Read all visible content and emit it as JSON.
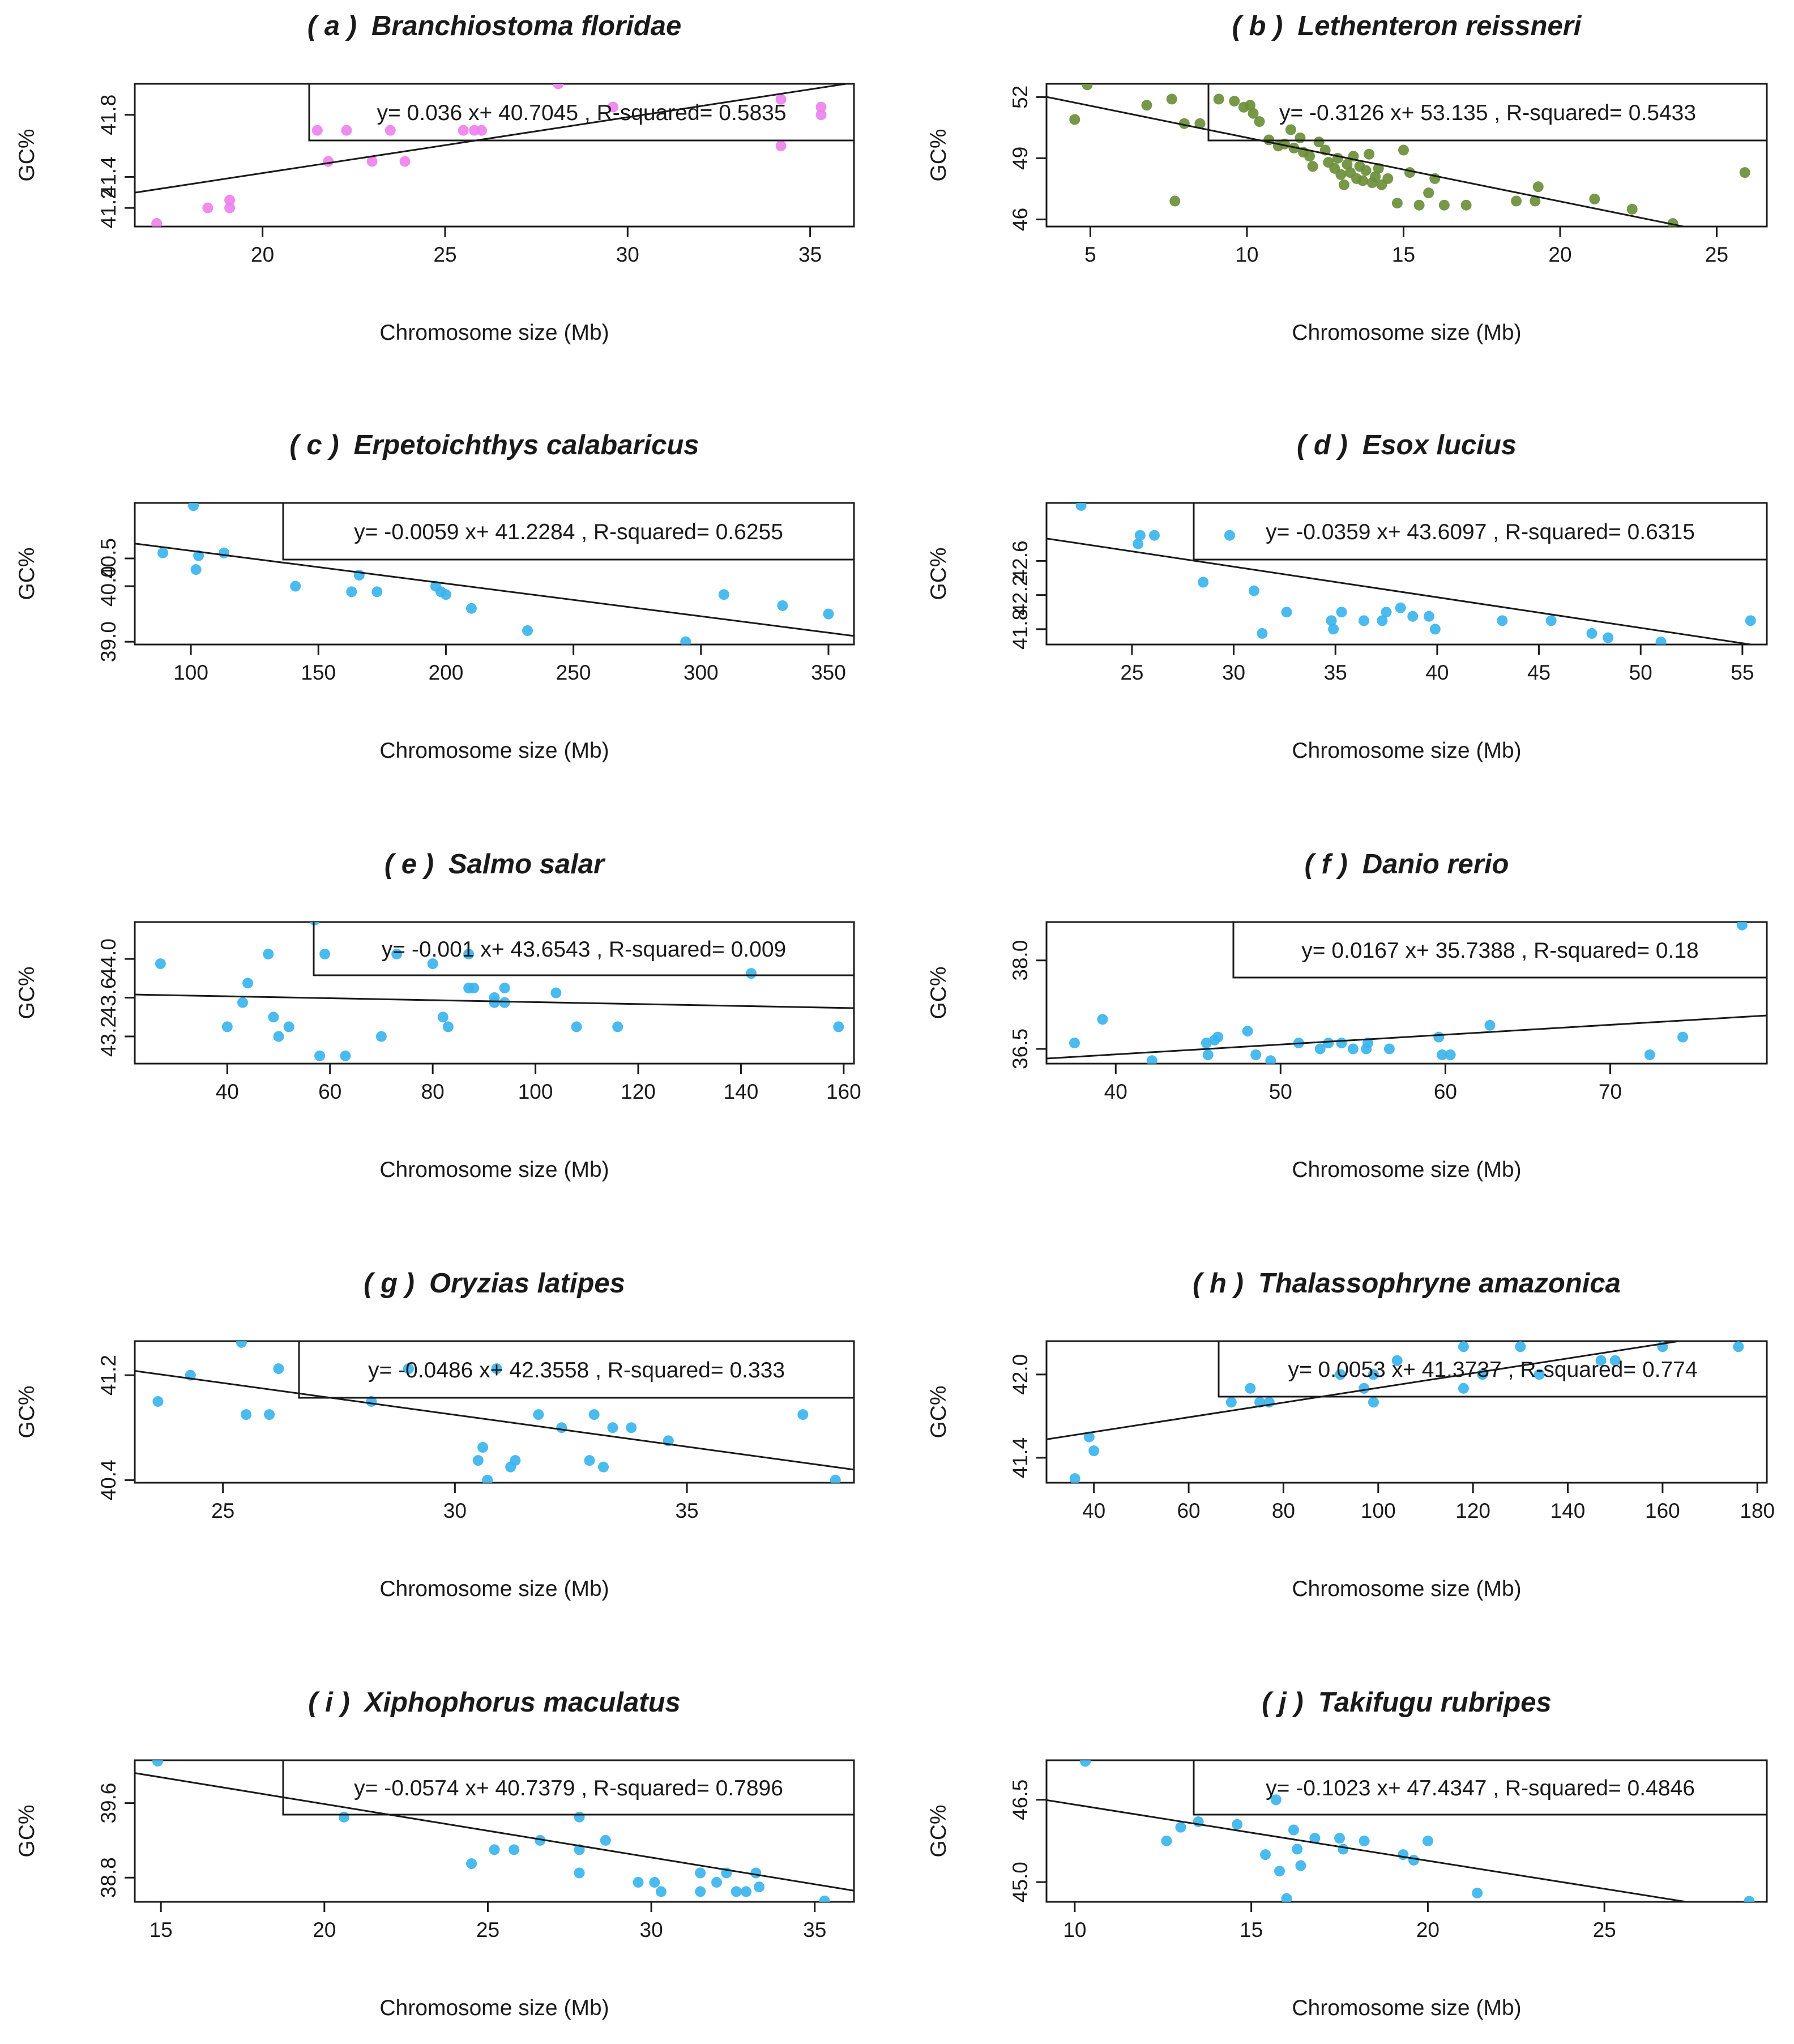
{
  "chart_data": [
    {
      "type": "scatter",
      "label": "( a )",
      "species": "Branchiostoma floridae",
      "xlabel": "Chromosome size (Mb)",
      "ylabel": "GC%",
      "xlim": [
        16.5,
        36.2
      ],
      "ylim": [
        41.08,
        42.0
      ],
      "xticks": [
        "20",
        "25",
        "30",
        "35"
      ],
      "yticks": [
        "41.2",
        "41.4",
        "41.8"
      ],
      "point_color": "#ee82ee",
      "equation": "y= 0.036 x+ 40.7045 ,  R-squared= 0.5835",
      "slope": 0.036,
      "intercept": 40.7045,
      "x": [
        17.1,
        18.5,
        19.1,
        19.1,
        21.5,
        21.8,
        22.3,
        23.0,
        23.5,
        23.9,
        25.5,
        25.8,
        26.0,
        28.1,
        29.6,
        34.2,
        34.2,
        35.3,
        35.3
      ],
      "y": [
        41.1,
        41.2,
        41.25,
        41.2,
        41.7,
        41.5,
        41.7,
        41.5,
        41.7,
        41.5,
        41.7,
        41.7,
        41.7,
        42.0,
        41.85,
        41.6,
        41.9,
        41.8,
        41.85
      ]
    },
    {
      "type": "scatter",
      "label": "( b )",
      "species": "Lethenteron reissneri",
      "xlabel": "Chromosome size (Mb)",
      "ylabel": "GC%",
      "xlim": [
        3.6,
        26.6
      ],
      "ylim": [
        45.65,
        52.65
      ],
      "xticks": [
        "5",
        "10",
        "15",
        "20",
        "25"
      ],
      "yticks": [
        "46",
        "49",
        "52"
      ],
      "point_color": "#6b8e3a",
      "equation": "y= -0.3126 x+ 53.135 ,  R-squared= 0.5433",
      "slope": -0.3126,
      "intercept": 53.135,
      "x": [
        4.5,
        4.9,
        6.8,
        7.6,
        7.7,
        8.0,
        8.5,
        9.1,
        9.6,
        9.9,
        10.1,
        10.2,
        10.4,
        10.7,
        11.0,
        11.2,
        11.4,
        11.5,
        11.7,
        11.8,
        12.0,
        12.1,
        12.3,
        12.5,
        12.6,
        12.8,
        12.9,
        13.0,
        13.1,
        13.2,
        13.3,
        13.4,
        13.5,
        13.6,
        13.7,
        13.8,
        13.9,
        14.0,
        14.1,
        14.2,
        14.3,
        14.5,
        14.8,
        15.0,
        15.2,
        15.5,
        15.8,
        16.0,
        16.3,
        17.0,
        18.6,
        19.2,
        19.3,
        21.1,
        22.3,
        23.6,
        25.9
      ],
      "y": [
        50.9,
        52.6,
        51.6,
        51.9,
        46.9,
        50.7,
        50.7,
        51.9,
        51.8,
        51.5,
        51.6,
        51.2,
        50.8,
        49.9,
        49.6,
        49.7,
        50.4,
        49.5,
        50.0,
        49.3,
        49.1,
        48.6,
        49.8,
        49.4,
        48.8,
        48.5,
        49.0,
        48.2,
        47.7,
        48.7,
        48.3,
        49.1,
        48.0,
        48.6,
        47.9,
        48.4,
        49.2,
        47.8,
        48.1,
        48.5,
        47.7,
        48.0,
        46.8,
        49.4,
        48.3,
        46.7,
        47.3,
        48.0,
        46.7,
        46.7,
        46.9,
        46.9,
        47.6,
        47.0,
        46.5,
        45.8,
        48.3
      ]
    },
    {
      "type": "scatter",
      "label": "( c )",
      "species": "Erpetoichthys calabaricus",
      "xlabel": "Chromosome size (Mb)",
      "ylabel": "GC%",
      "xlim": [
        78,
        360
      ],
      "ylim": [
        38.95,
        41.5
      ],
      "xticks": [
        "100",
        "150",
        "200",
        "250",
        "300",
        "350"
      ],
      "yticks": [
        "39.0",
        "40.0",
        "40.5"
      ],
      "point_color": "#3bb4ee",
      "equation": "y= -0.0059 x+ 41.2284 ,  R-squared= 0.6255",
      "slope": -0.0059,
      "intercept": 41.2284,
      "x": [
        89,
        101,
        103,
        102,
        113,
        141,
        163,
        166,
        173,
        196,
        198,
        200,
        210,
        232,
        294,
        309,
        332,
        350
      ],
      "y": [
        40.6,
        41.45,
        40.55,
        40.3,
        40.6,
        40.0,
        39.9,
        40.2,
        39.9,
        40.0,
        39.9,
        39.85,
        39.6,
        39.2,
        39.0,
        39.85,
        39.65,
        39.5
      ]
    },
    {
      "type": "scatter",
      "label": "( d )",
      "species": "Esox lucius",
      "xlabel": "Chromosome size (Mb)",
      "ylabel": "GC%",
      "xlim": [
        20.8,
        56.2
      ],
      "ylim": [
        41.62,
        43.28
      ],
      "xticks": [
        "25",
        "30",
        "35",
        "40",
        "45",
        "50",
        "55"
      ],
      "yticks": [
        "41.8",
        "42.2",
        "42.6"
      ],
      "point_color": "#3bb4ee",
      "equation": "y= -0.0359 x+ 43.6097 ,  R-squared= 0.6315",
      "slope": -0.0359,
      "intercept": 43.6097,
      "x": [
        22.5,
        25.3,
        25.4,
        26.1,
        28.5,
        29.8,
        31.0,
        31.4,
        32.6,
        34.8,
        34.9,
        35.3,
        36.4,
        37.3,
        37.5,
        38.2,
        38.8,
        39.6,
        39.9,
        43.2,
        45.6,
        47.6,
        48.4,
        51.0,
        55.4
      ],
      "y": [
        43.25,
        42.8,
        42.9,
        42.9,
        42.35,
        42.9,
        42.25,
        41.75,
        42.0,
        41.9,
        41.8,
        42.0,
        41.9,
        41.9,
        42.0,
        42.05,
        41.95,
        41.95,
        41.8,
        41.9,
        41.9,
        41.75,
        41.7,
        41.65,
        41.9
      ]
    },
    {
      "type": "scatter",
      "label": "( e )",
      "species": "Salmo salar",
      "xlabel": "Chromosome size (Mb)",
      "ylabel": "GC%",
      "xlim": [
        22,
        162
      ],
      "ylim": [
        42.92,
        44.38
      ],
      "xticks": [
        "40",
        "60",
        "80",
        "100",
        "120",
        "140",
        "160"
      ],
      "yticks": [
        "43.2",
        "43.6",
        "44.0"
      ],
      "point_color": "#3bb4ee",
      "equation": "y= -0.001 x+ 43.6543 ,  R-squared= 0.009",
      "slope": -0.001,
      "intercept": 43.6543,
      "x": [
        27,
        40,
        43,
        44,
        48,
        49,
        50,
        52,
        57,
        58,
        59,
        63,
        70,
        73,
        80,
        82,
        83,
        87,
        87,
        88,
        92,
        92,
        94,
        94,
        104,
        108,
        116,
        142,
        159
      ],
      "y": [
        43.95,
        43.3,
        43.55,
        43.75,
        44.05,
        43.4,
        43.2,
        43.3,
        44.4,
        43.0,
        44.05,
        43.0,
        43.2,
        44.05,
        43.95,
        43.4,
        43.3,
        43.7,
        44.05,
        43.7,
        43.6,
        43.55,
        43.55,
        43.7,
        43.65,
        43.3,
        43.3,
        43.85,
        43.3
      ]
    },
    {
      "type": "scatter",
      "label": "( f )",
      "species": "Danio rerio",
      "xlabel": "Chromosome size (Mb)",
      "ylabel": "GC%",
      "xlim": [
        35.8,
        79.5
      ],
      "ylim": [
        36.25,
        38.65
      ],
      "xticks": [
        "40",
        "50",
        "60",
        "70"
      ],
      "yticks": [
        "36.5",
        "38.0"
      ],
      "point_color": "#3bb4ee",
      "equation": "y= 0.0167 x+ 35.7388 ,  R-squared= 0.18",
      "slope": 0.0167,
      "intercept": 35.7388,
      "x": [
        37.5,
        39.2,
        42.2,
        45.5,
        45.6,
        46.0,
        46.2,
        48.0,
        48.5,
        49.4,
        51.1,
        52.4,
        52.9,
        53.7,
        54.4,
        55.2,
        55.3,
        56.6,
        59.6,
        59.8,
        60.3,
        62.7,
        72.4,
        74.4,
        78.0
      ],
      "y": [
        36.6,
        37.0,
        36.3,
        36.6,
        36.4,
        36.65,
        36.7,
        36.8,
        36.4,
        36.3,
        36.6,
        36.5,
        36.6,
        36.6,
        36.5,
        36.5,
        36.6,
        36.5,
        36.7,
        36.4,
        36.4,
        36.9,
        36.4,
        36.7,
        38.6
      ]
    },
    {
      "type": "scatter",
      "label": "( g )",
      "species": "Oryzias latipes",
      "xlabel": "Chromosome size (Mb)",
      "ylabel": "GC%",
      "xlim": [
        23.1,
        38.6
      ],
      "ylim": [
        40.38,
        41.46
      ],
      "xticks": [
        "25",
        "30",
        "35"
      ],
      "yticks": [
        "40.4",
        "41.2"
      ],
      "point_color": "#3bb4ee",
      "equation": "y= -0.0486 x+ 42.3558 ,  R-squared= 0.333",
      "slope": -0.0486,
      "intercept": 42.3558,
      "x": [
        23.6,
        24.3,
        25.4,
        25.5,
        26.0,
        26.2,
        28.2,
        29.0,
        30.5,
        30.6,
        30.7,
        30.9,
        31.2,
        31.3,
        31.8,
        32.3,
        32.9,
        33.0,
        33.2,
        33.4,
        33.8,
        34.6,
        37.5,
        38.2
      ],
      "y": [
        41.0,
        41.2,
        41.45,
        40.9,
        40.9,
        41.25,
        41.0,
        41.25,
        40.55,
        40.65,
        40.4,
        41.25,
        40.5,
        40.55,
        40.9,
        40.8,
        40.55,
        40.9,
        40.5,
        40.8,
        40.8,
        40.7,
        40.9,
        40.4
      ]
    },
    {
      "type": "scatter",
      "label": "( h )",
      "species": "Thalassophryne amazonica",
      "xlabel": "Chromosome size (Mb)",
      "ylabel": "GC%",
      "xlim": [
        30,
        182
      ],
      "ylim": [
        41.22,
        42.24
      ],
      "xticks": [
        "40",
        "60",
        "80",
        "100",
        "120",
        "140",
        "160",
        "180"
      ],
      "yticks": [
        "41.4",
        "42.0"
      ],
      "point_color": "#3bb4ee",
      "equation": "y= 0.0053 x+ 41.3737 ,  R-squared= 0.774",
      "slope": 0.0053,
      "intercept": 41.3737,
      "x": [
        36,
        39,
        40,
        69,
        73,
        75,
        77,
        92,
        97,
        99,
        99,
        104,
        118,
        118,
        122,
        130,
        134,
        147,
        150,
        160,
        176
      ],
      "y": [
        41.25,
        41.55,
        41.45,
        41.8,
        41.9,
        41.8,
        41.8,
        42.0,
        41.9,
        41.8,
        42.0,
        42.1,
        42.2,
        41.9,
        42.0,
        42.2,
        42.0,
        42.1,
        42.1,
        42.2,
        42.2
      ]
    },
    {
      "type": "scatter",
      "label": "( i )",
      "species": "Xiphophorus maculatus",
      "xlabel": "Chromosome size (Mb)",
      "ylabel": "GC%",
      "xlim": [
        14.2,
        36.2
      ],
      "ylim": [
        38.54,
        40.06
      ],
      "xticks": [
        "15",
        "20",
        "25",
        "30",
        "35"
      ],
      "yticks": [
        "38.8",
        "39.6"
      ],
      "point_color": "#3bb4ee",
      "equation": "y= -0.0574 x+ 40.7379 ,  R-squared= 0.7896",
      "slope": -0.0574,
      "intercept": 40.7379,
      "x": [
        14.9,
        20.6,
        24.5,
        25.2,
        25.8,
        26.6,
        27.8,
        27.8,
        27.8,
        28.6,
        29.6,
        30.1,
        30.3,
        31.5,
        31.5,
        32.0,
        32.3,
        32.6,
        32.9,
        33.2,
        33.3,
        35.3
      ],
      "y": [
        40.05,
        39.45,
        38.95,
        39.1,
        39.1,
        39.2,
        39.45,
        39.1,
        38.85,
        39.2,
        38.75,
        38.75,
        38.65,
        38.85,
        38.65,
        38.75,
        38.85,
        38.65,
        38.65,
        38.85,
        38.7,
        38.55
      ]
    },
    {
      "type": "scatter",
      "label": "( j )",
      "species": "Takifugu rubripes",
      "xlabel": "Chromosome size (Mb)",
      "ylabel": "GC%",
      "xlim": [
        9.2,
        29.6
      ],
      "ylim": [
        44.64,
        47.22
      ],
      "xticks": [
        "10",
        "15",
        "20",
        "25"
      ],
      "yticks": [
        "45.0",
        "46.5"
      ],
      "point_color": "#3bb4ee",
      "equation": "y= -0.1023 x+ 47.4347 ,  R-squared= 0.4846",
      "slope": -0.1023,
      "intercept": 47.4347,
      "x": [
        10.3,
        12.6,
        13.0,
        13.5,
        14.6,
        15.4,
        15.7,
        15.8,
        16.0,
        16.2,
        16.3,
        16.4,
        16.8,
        17.5,
        17.6,
        18.2,
        19.3,
        19.6,
        20.0,
        21.4,
        29.1
      ],
      "y": [
        47.2,
        45.75,
        46.0,
        46.1,
        46.05,
        45.5,
        46.5,
        45.2,
        44.7,
        45.95,
        45.6,
        45.3,
        45.8,
        45.8,
        45.6,
        45.75,
        45.5,
        45.4,
        45.75,
        44.8,
        44.65
      ]
    }
  ]
}
